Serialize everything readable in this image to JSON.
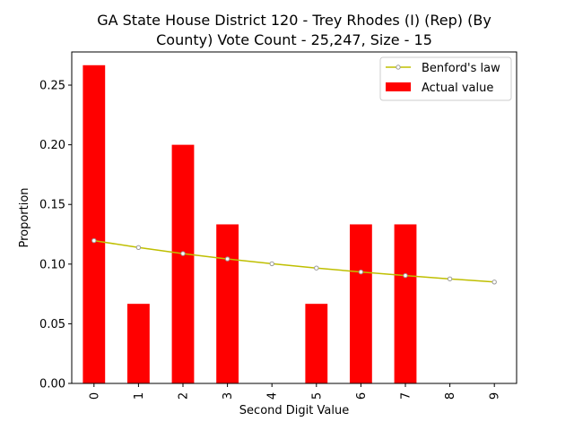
{
  "chart_data": {
    "type": "bar",
    "title_lines": [
      "GA State House District 120 - Trey Rhodes (I) (Rep) (By",
      "County) Vote Count - 25,247, Size - 15"
    ],
    "xlabel": "Second Digit Value",
    "ylabel": "Proportion",
    "categories": [
      "0",
      "1",
      "2",
      "3",
      "4",
      "5",
      "6",
      "7",
      "8",
      "9"
    ],
    "ylim": [
      0,
      0.2778
    ],
    "yticks": [
      0.0,
      0.05,
      0.1,
      0.15,
      0.2,
      0.25
    ],
    "ytick_labels": [
      "0.00",
      "0.05",
      "0.10",
      "0.15",
      "0.20",
      "0.25"
    ],
    "grid": false,
    "legend_position": "top-right",
    "series": [
      {
        "name": "Benford's law",
        "kind": "line",
        "color": "#bfbf00",
        "marker_color": "#9a9a9a",
        "values": [
          0.1197,
          0.1139,
          0.1088,
          0.1043,
          0.1003,
          0.0967,
          0.0934,
          0.0904,
          0.0876,
          0.085
        ]
      },
      {
        "name": "Actual value",
        "kind": "bar",
        "color": "#ff0000",
        "values": [
          0.2667,
          0.0667,
          0.2,
          0.1333,
          0.0,
          0.0667,
          0.1333,
          0.1333,
          0.0,
          0.0
        ]
      }
    ]
  }
}
